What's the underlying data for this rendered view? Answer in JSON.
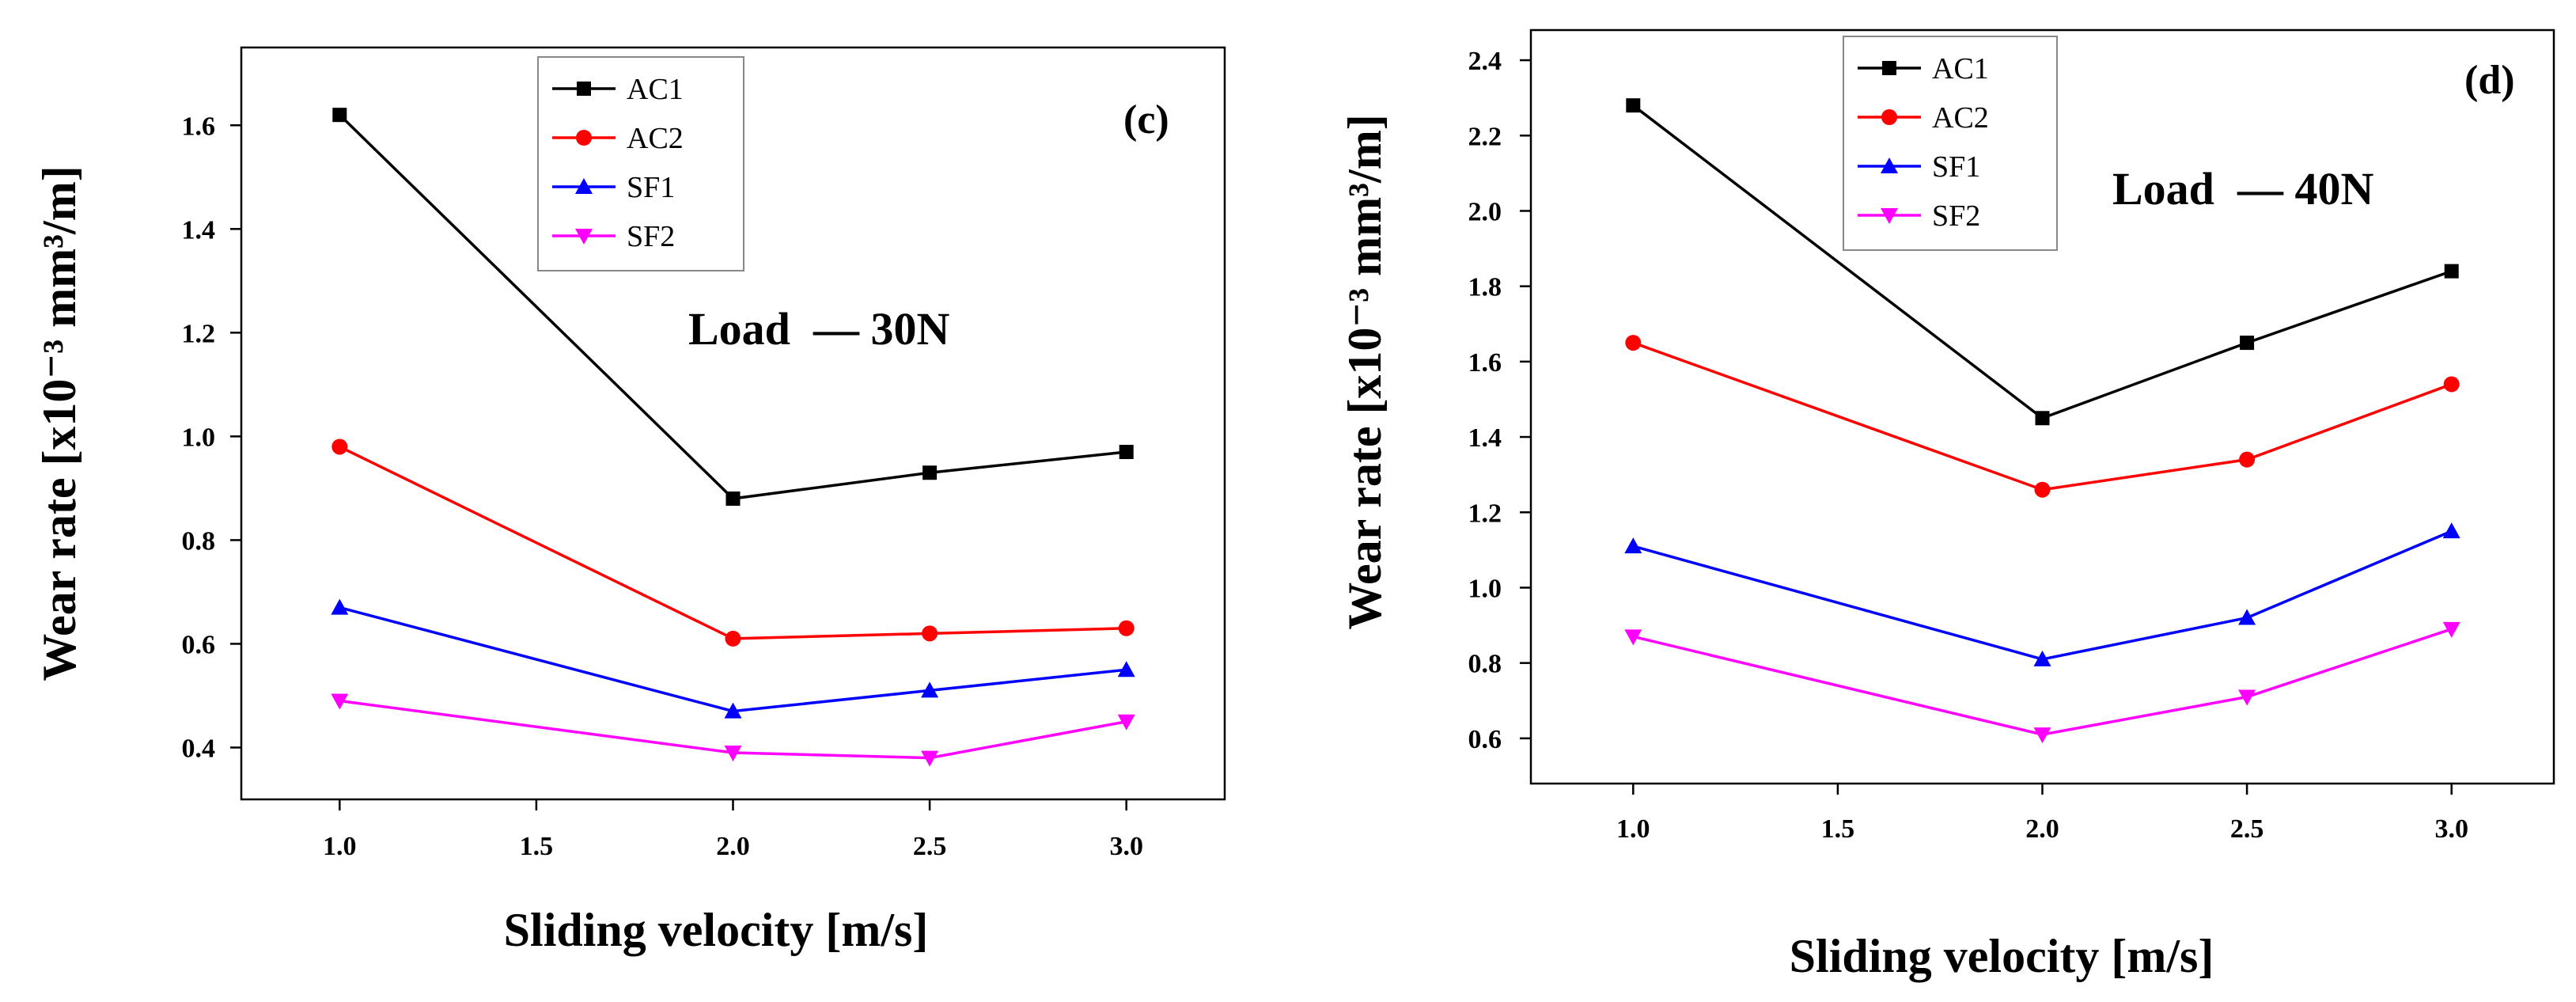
{
  "chart_data": [
    {
      "type": "line",
      "panel_label": "(c)",
      "annotation": "Load  — 30N",
      "xlabel": "Sliding velocity [m/s]",
      "ylabel": "Wear rate [x10⁻³ mm³/m]",
      "xlim": [
        0.75,
        3.25
      ],
      "ylim": [
        0.3,
        1.75
      ],
      "xticks": [
        1.0,
        1.5,
        2.0,
        2.5,
        3.0
      ],
      "xtick_labels": [
        "1.0",
        "1.5",
        "2.0",
        "2.5",
        "3.0"
      ],
      "yticks": [
        0.4,
        0.6,
        0.8,
        1.0,
        1.2,
        1.4,
        1.6
      ],
      "ytick_labels": [
        "0.4",
        "0.6",
        "0.8",
        "1.0",
        "1.2",
        "1.4",
        "1.6"
      ],
      "legend_position": "top-center",
      "x": [
        1.0,
        2.0,
        2.5,
        3.0
      ],
      "series": [
        {
          "name": "AC1",
          "color": "#000000",
          "marker": "square",
          "values": [
            1.62,
            0.88,
            0.93,
            0.97
          ]
        },
        {
          "name": "AC2",
          "color": "#ff0000",
          "marker": "circle",
          "values": [
            0.98,
            0.61,
            0.62,
            0.63
          ]
        },
        {
          "name": "SF1",
          "color": "#0000ff",
          "marker": "triangle-up",
          "values": [
            0.67,
            0.47,
            0.51,
            0.55
          ]
        },
        {
          "name": "SF2",
          "color": "#ff00ff",
          "marker": "triangle-down",
          "values": [
            0.49,
            0.39,
            0.38,
            0.45
          ]
        }
      ]
    },
    {
      "type": "line",
      "panel_label": "(d)",
      "annotation": "Load  — 40N",
      "xlabel": "Sliding velocity [m/s]",
      "ylabel": "Wear rate [x10⁻³ mm³/m]",
      "xlim": [
        0.75,
        3.25
      ],
      "ylim": [
        0.48,
        2.48
      ],
      "xticks": [
        1.0,
        1.5,
        2.0,
        2.5,
        3.0
      ],
      "xtick_labels": [
        "1.0",
        "1.5",
        "2.0",
        "2.5",
        "3.0"
      ],
      "yticks": [
        0.6,
        0.8,
        1.0,
        1.2,
        1.4,
        1.6,
        1.8,
        2.0,
        2.2,
        2.4
      ],
      "ytick_labels": [
        "0.6",
        "0.8",
        "1.0",
        "1.2",
        "1.4",
        "1.6",
        "1.8",
        "2.0",
        "2.2",
        "2.4"
      ],
      "legend_position": "top-center",
      "x": [
        1.0,
        2.0,
        2.5,
        3.0
      ],
      "series": [
        {
          "name": "AC1",
          "color": "#000000",
          "marker": "square",
          "values": [
            2.28,
            1.45,
            1.65,
            1.84
          ]
        },
        {
          "name": "AC2",
          "color": "#ff0000",
          "marker": "circle",
          "values": [
            1.65,
            1.26,
            1.34,
            1.54
          ]
        },
        {
          "name": "SF1",
          "color": "#0000ff",
          "marker": "triangle-up",
          "values": [
            1.11,
            0.81,
            0.92,
            1.15
          ]
        },
        {
          "name": "SF2",
          "color": "#ff00ff",
          "marker": "triangle-down",
          "values": [
            0.87,
            0.61,
            0.71,
            0.89
          ]
        }
      ]
    }
  ]
}
